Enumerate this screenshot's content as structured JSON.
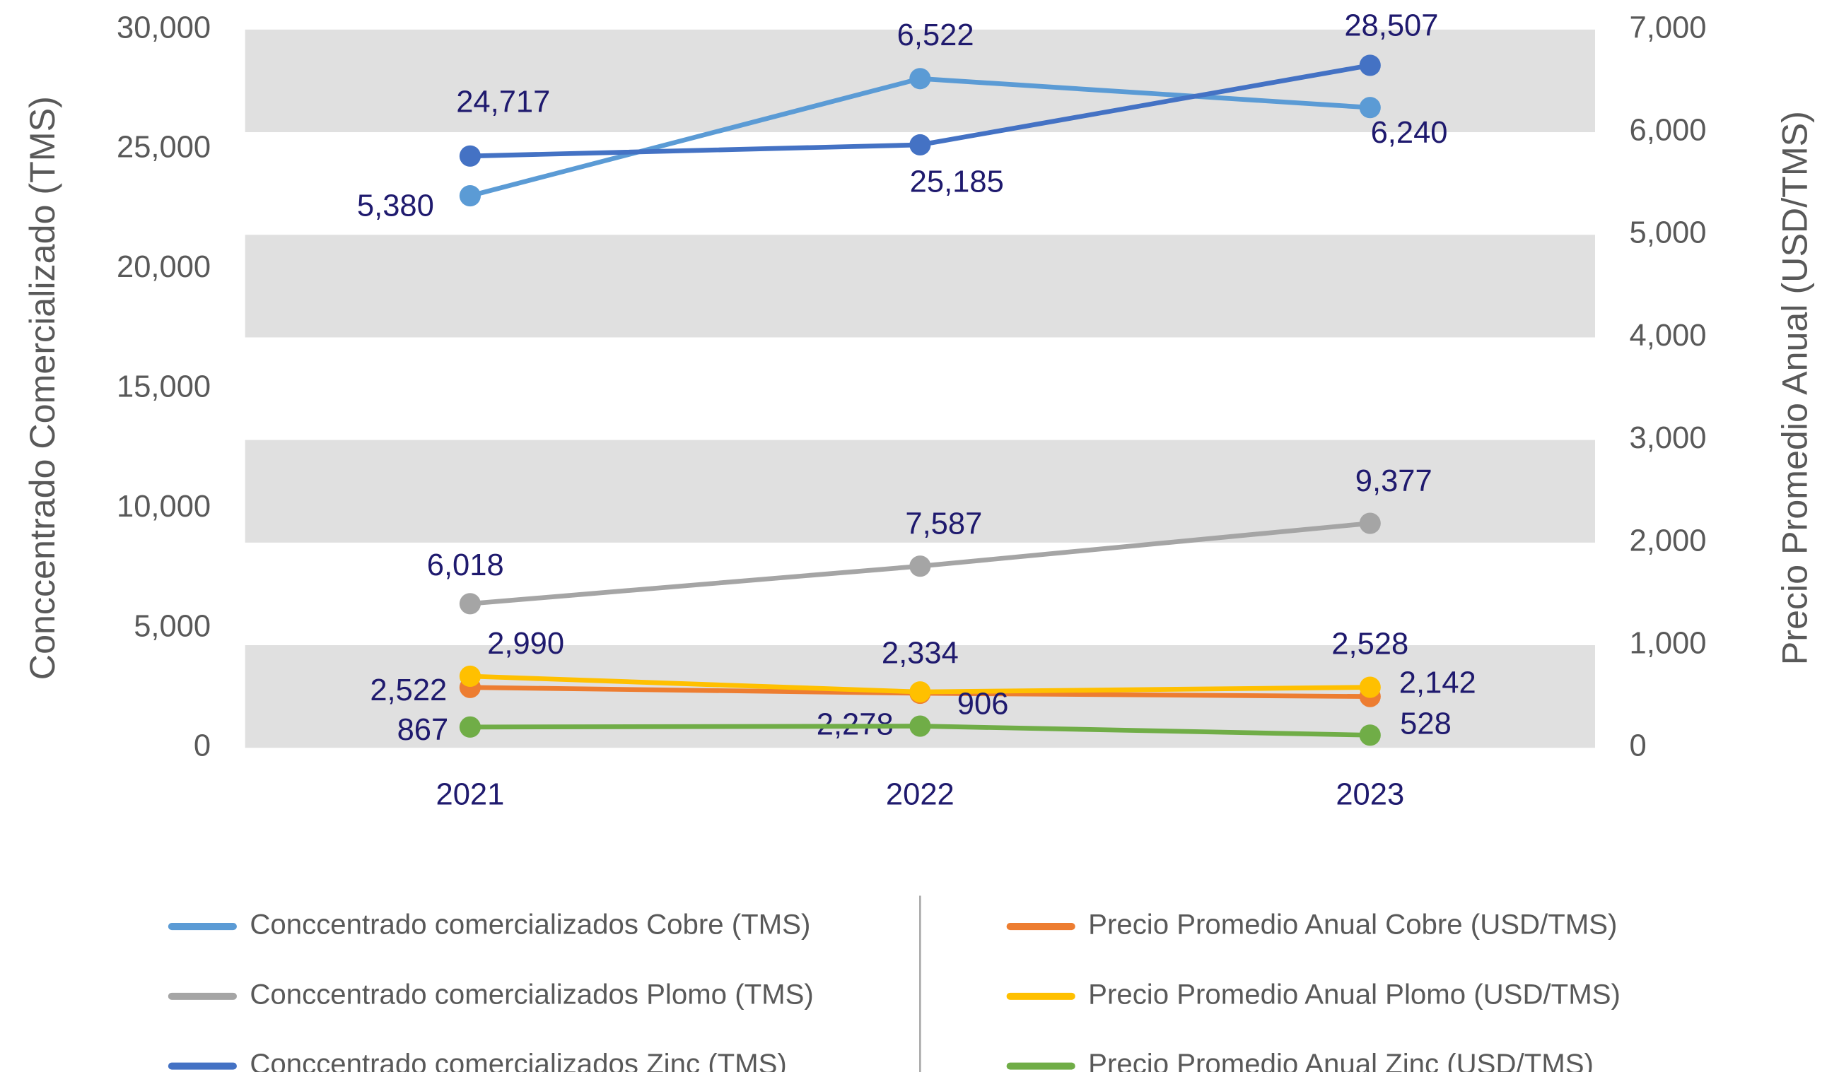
{
  "chart_data": {
    "type": "line",
    "y_label": "Conccentrado Comercializado (TMS)",
    "y2_label": "Precio Promedio Anual (USD/TMS)",
    "categories": [
      "2021",
      "2022",
      "2023"
    ],
    "ylim": [
      0,
      30000
    ],
    "yticks": [
      {
        "value": 0,
        "label": "0"
      },
      {
        "value": 5000,
        "label": "5,000"
      },
      {
        "value": 10000,
        "label": "10,000"
      },
      {
        "value": 15000,
        "label": "15,000"
      },
      {
        "value": 20000,
        "label": "20,000"
      },
      {
        "value": 25000,
        "label": "25,000"
      },
      {
        "value": 30000,
        "label": "30,000"
      }
    ],
    "y2lim": [
      0,
      7000
    ],
    "y2ticks": [
      {
        "value": 0,
        "label": "0"
      },
      {
        "value": 1000,
        "label": "1,000"
      },
      {
        "value": 2000,
        "label": "2,000"
      },
      {
        "value": 3000,
        "label": "3,000"
      },
      {
        "value": 4000,
        "label": "4,000"
      },
      {
        "value": 5000,
        "label": "5,000"
      },
      {
        "value": 6000,
        "label": "6,000"
      },
      {
        "value": 7000,
        "label": "7,000"
      }
    ],
    "grid": "bands",
    "series": [
      {
        "name": "Conccentrado comercializados Cobre (TMS)",
        "color": "#5b9bd5",
        "axis": "y2",
        "values": [
          5380,
          6522,
          6240
        ],
        "value_labels": [
          "5,380",
          "6,522",
          "6,240"
        ]
      },
      {
        "name": "Conccentrado comercializados Plomo (TMS)",
        "color": "#a5a5a5",
        "values": [
          6018,
          7587,
          9377
        ],
        "value_labels": [
          "6,018",
          "7,587",
          "9,377"
        ]
      },
      {
        "name": "Conccentrado comercializados Zinc (TMS)",
        "color": "#4472c4",
        "values": [
          24717,
          25185,
          28507
        ],
        "value_labels": [
          "24,717",
          "25,185",
          "28,507"
        ]
      },
      {
        "name": "Precio Promedio Anual Cobre (USD/TMS)",
        "color": "#ed7d31",
        "values": [
          2522,
          2278,
          2142
        ],
        "value_labels": [
          "2,522",
          "2,278",
          "2,142"
        ]
      },
      {
        "name": "Precio Promedio Anual Plomo (USD/TMS)",
        "color": "#ffc000",
        "values": [
          2990,
          2334,
          2528
        ],
        "value_labels": [
          "2,990",
          "2,334",
          "2,528"
        ]
      },
      {
        "name": "Precio Promedio Anual Zinc (USD/TMS)",
        "color": "#70ad47",
        "values": [
          867,
          906,
          528
        ],
        "value_labels": [
          "867",
          "906",
          "528"
        ]
      }
    ]
  }
}
